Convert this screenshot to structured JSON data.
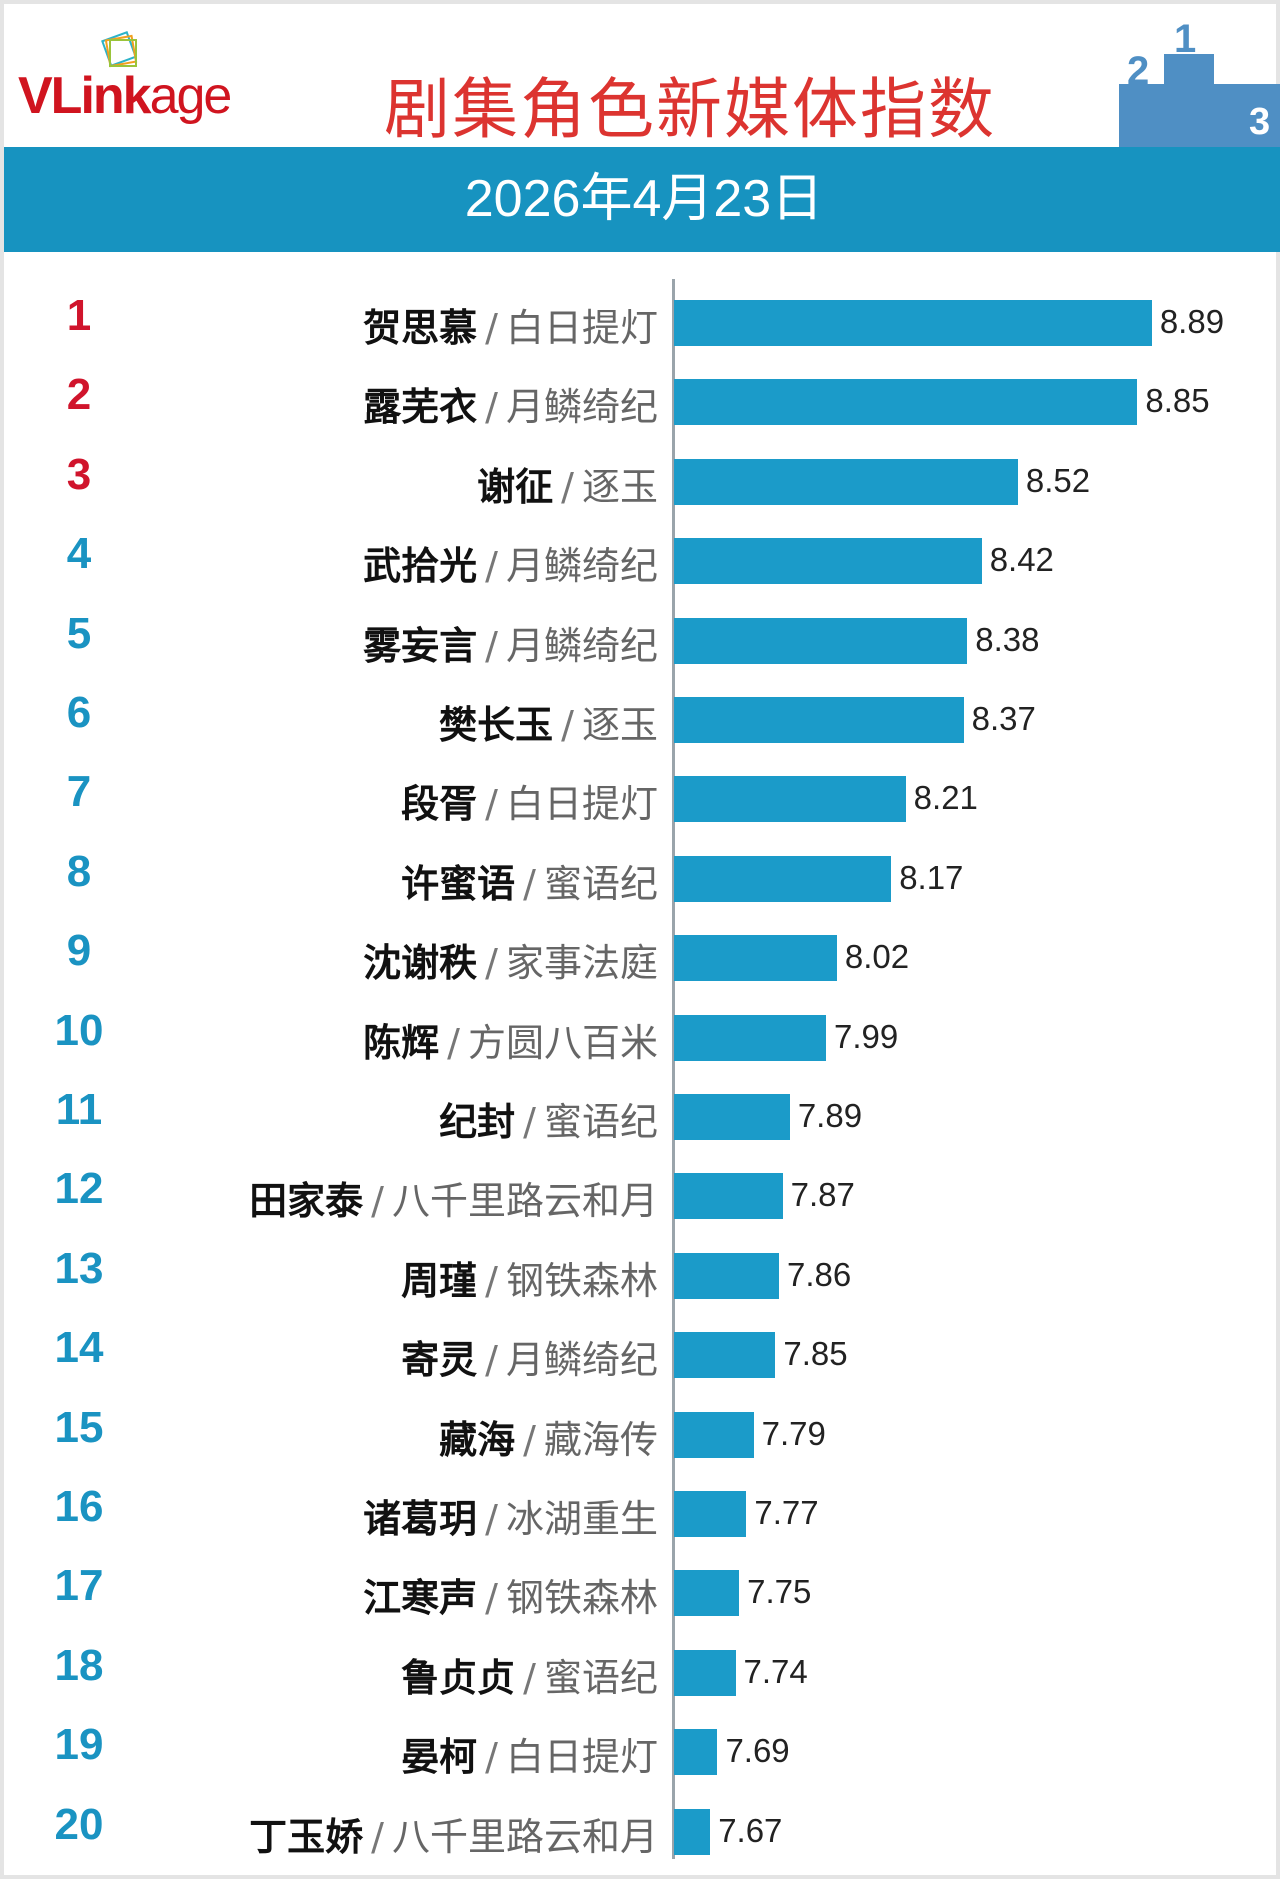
{
  "header": {
    "logo": "VLinkage",
    "title": "剧集角色新媒体指数",
    "date": "2026年4月23日",
    "colors": {
      "title": "#dc3430",
      "band": "#1793c0",
      "bar": "#1b9bc9",
      "top_rank": "#d0142c",
      "rank": "#1a93c2"
    }
  },
  "chart_data": {
    "type": "bar",
    "orientation": "horizontal",
    "title": "剧集角色新媒体指数",
    "subtitle": "2026年4月23日",
    "rows": [
      {
        "rank": "1",
        "name": "贺思慕",
        "drama": "白日提灯",
        "value": 8.89
      },
      {
        "rank": "2",
        "name": "露芜衣",
        "drama": "月鳞绮纪",
        "value": 8.85
      },
      {
        "rank": "3",
        "name": "谢征",
        "drama": "逐玉",
        "value": 8.52
      },
      {
        "rank": "4",
        "name": "武拾光",
        "drama": "月鳞绮纪",
        "value": 8.42
      },
      {
        "rank": "5",
        "name": "雾妄言",
        "drama": "月鳞绮纪",
        "value": 8.38
      },
      {
        "rank": "6",
        "name": "樊长玉",
        "drama": "逐玉",
        "value": 8.37
      },
      {
        "rank": "7",
        "name": "段胥",
        "drama": "白日提灯",
        "value": 8.21
      },
      {
        "rank": "8",
        "name": "许蜜语",
        "drama": "蜜语纪",
        "value": 8.17
      },
      {
        "rank": "9",
        "name": "沈谢秩",
        "drama": "家事法庭",
        "value": 8.02
      },
      {
        "rank": "10",
        "name": "陈辉",
        "drama": "方圆八百米",
        "value": 7.99
      },
      {
        "rank": "11",
        "name": "纪封",
        "drama": "蜜语纪",
        "value": 7.89
      },
      {
        "rank": "12",
        "name": "田家泰",
        "drama": "八千里路云和月",
        "value": 7.87
      },
      {
        "rank": "13",
        "name": "周瑾",
        "drama": "钢铁森林",
        "value": 7.86
      },
      {
        "rank": "14",
        "name": "寄灵",
        "drama": "月鳞绮纪",
        "value": 7.85
      },
      {
        "rank": "15",
        "name": "藏海",
        "drama": "藏海传",
        "value": 7.79
      },
      {
        "rank": "16",
        "name": "诸葛玥",
        "drama": "冰湖重生",
        "value": 7.77
      },
      {
        "rank": "17",
        "name": "江寒声",
        "drama": "钢铁森林",
        "value": 7.75
      },
      {
        "rank": "18",
        "name": "鲁贞贞",
        "drama": "蜜语纪",
        "value": 7.74
      },
      {
        "rank": "19",
        "name": "晏柯",
        "drama": "白日提灯",
        "value": 7.69
      },
      {
        "rank": "20",
        "name": "丁玉娇",
        "drama": "八千里路云和月",
        "value": 7.67
      }
    ],
    "separator": "/",
    "grid": false
  }
}
